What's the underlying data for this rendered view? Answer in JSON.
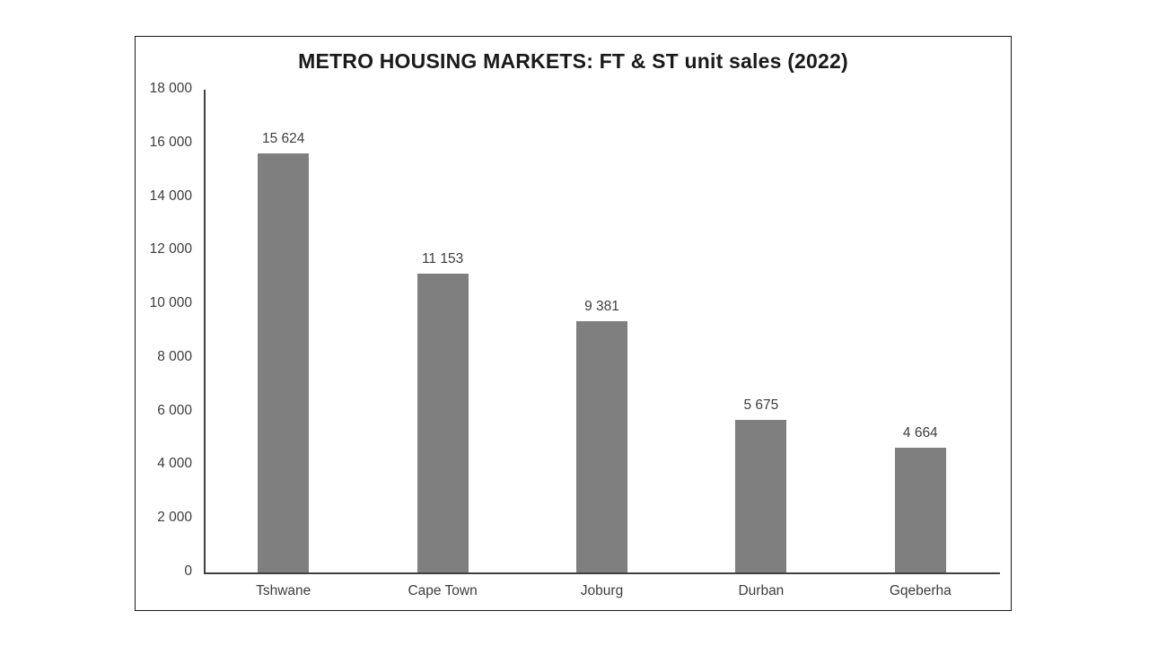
{
  "page": {
    "background_color": "#ffffff",
    "frame_border_color": "#1a1a1a"
  },
  "chart_data": {
    "type": "bar",
    "title": "METRO HOUSING MARKETS: FT & ST unit sales (2022)",
    "categories": [
      "Tshwane",
      "Cape Town",
      "Joburg",
      "Durban",
      "Gqeberha"
    ],
    "values": [
      15624,
      11153,
      9381,
      5675,
      4664
    ],
    "data_labels": [
      "15 624",
      "11 153",
      "9 381",
      "5 675",
      "4 664"
    ],
    "xlabel": "",
    "ylabel": "",
    "ylim": [
      0,
      18000
    ],
    "y_tick_step": 2000,
    "y_tick_labels": [
      "0",
      "2 000",
      "4 000",
      "6 000",
      "8 000",
      "10 000",
      "12 000",
      "14 000",
      "16 000",
      "18 000"
    ],
    "grid": false,
    "legend": false,
    "bar_color": "#7f7f7f",
    "axis_color": "#404040",
    "text_color": "#3d3d3d",
    "title_color": "#1a1a1a"
  }
}
